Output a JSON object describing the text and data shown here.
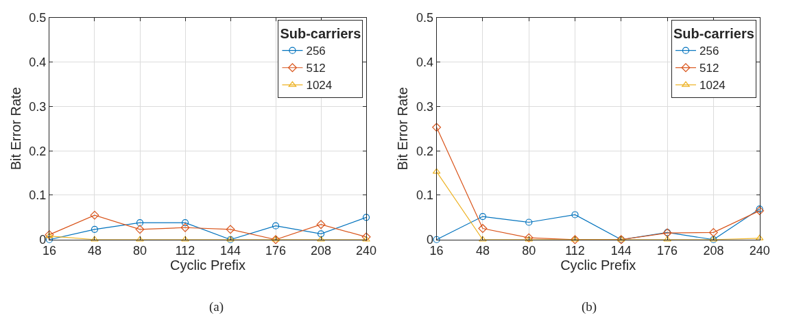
{
  "chart_data": [
    {
      "type": "line",
      "xlabel": "Cyclic Prefix",
      "ylabel": "Bit Error Rate",
      "legend_title": "Sub-carriers",
      "annotations": [
        "(a)"
      ],
      "x": [
        16,
        48,
        80,
        112,
        144,
        176,
        208,
        240
      ],
      "xlim": [
        16,
        240
      ],
      "xticks": [
        16,
        48,
        80,
        112,
        144,
        176,
        208,
        240
      ],
      "ylim": [
        0,
        0.5
      ],
      "yticks": [
        0,
        0.1,
        0.2,
        0.3,
        0.4,
        0.5
      ],
      "grid": true,
      "legend": "top right",
      "series": [
        {
          "name": "256",
          "color": "#0072bd",
          "marker": "circle",
          "values": [
            0,
            0.023,
            0.038,
            0.038,
            0,
            0.031,
            0.013,
            0.05
          ]
        },
        {
          "name": "512",
          "color": "#d95319",
          "marker": "diamond",
          "values": [
            0.011,
            0.055,
            0.023,
            0.027,
            0.023,
            0,
            0.034,
            0.006
          ]
        },
        {
          "name": "1024",
          "color": "#edb120",
          "marker": "triangle",
          "values": [
            0.008,
            0,
            0,
            0,
            0,
            0,
            0,
            0
          ]
        }
      ]
    },
    {
      "type": "line",
      "xlabel": "Cyclic Prefix",
      "ylabel": "Bit Error Rate",
      "legend_title": "Sub-carriers",
      "annotations": [
        "(b)"
      ],
      "x": [
        16,
        48,
        80,
        112,
        144,
        176,
        208,
        240
      ],
      "xlim": [
        16,
        240
      ],
      "xticks": [
        16,
        48,
        80,
        112,
        144,
        176,
        208,
        240
      ],
      "ylim": [
        0,
        0.5
      ],
      "yticks": [
        0,
        0.1,
        0.2,
        0.3,
        0.4,
        0.5
      ],
      "grid": true,
      "legend": "top right",
      "series": [
        {
          "name": "256",
          "color": "#0072bd",
          "marker": "circle",
          "values": [
            0,
            0.052,
            0.039,
            0.056,
            0,
            0.016,
            0,
            0.069
          ]
        },
        {
          "name": "512",
          "color": "#d95319",
          "marker": "diamond",
          "values": [
            0.253,
            0.025,
            0.004,
            0,
            0,
            0.015,
            0.016,
            0.065
          ]
        },
        {
          "name": "1024",
          "color": "#edb120",
          "marker": "triangle",
          "values": [
            0.153,
            0,
            0,
            0,
            0,
            0,
            0,
            0.003
          ]
        }
      ]
    }
  ]
}
